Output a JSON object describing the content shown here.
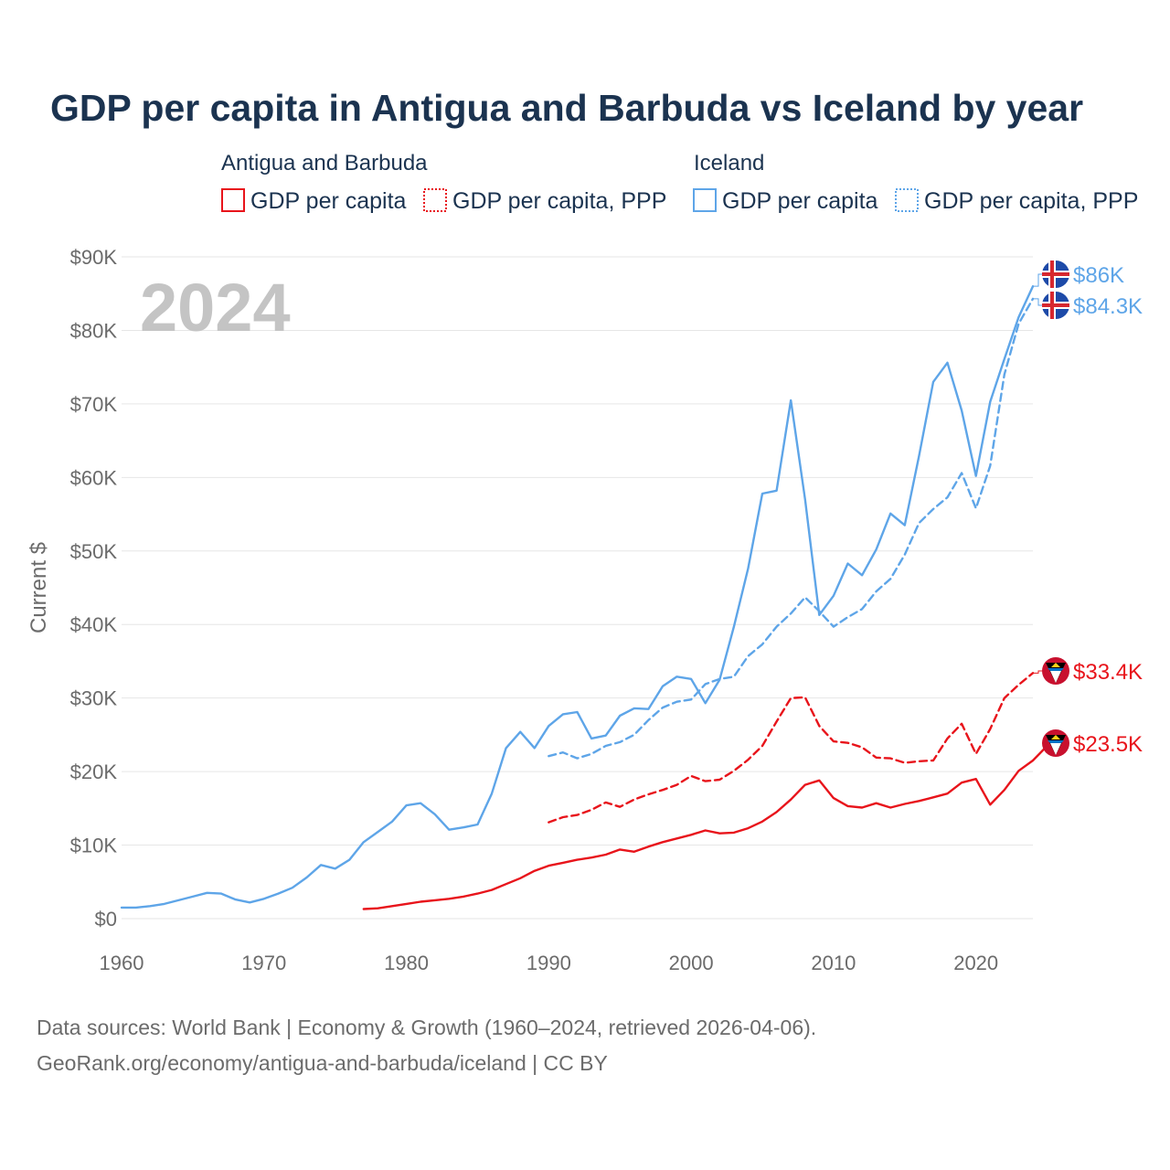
{
  "chart_data": {
    "type": "line",
    "title": "GDP per capita in Antigua and Barbuda vs Iceland by year",
    "ylabel": "Current $",
    "xlim": [
      1960,
      2024
    ],
    "ylim": [
      0,
      90000
    ],
    "x_ticks": [
      1960,
      1970,
      1980,
      1990,
      2000,
      2010,
      2020
    ],
    "x_tick_labels": [
      "1960",
      "1970",
      "1980",
      "1990",
      "2000",
      "2010",
      "2020"
    ],
    "y_ticks": [
      0,
      10000,
      20000,
      30000,
      40000,
      50000,
      60000,
      70000,
      80000,
      90000
    ],
    "y_tick_labels": [
      "$0",
      "$10K",
      "$20K",
      "$30K",
      "$40K",
      "$50K",
      "$60K",
      "$70K",
      "$80K",
      "$90K"
    ],
    "year_watermark": "2024",
    "legend": {
      "groups": [
        {
          "name": "Antigua and Barbuda",
          "items": [
            "GDP per capita",
            "GDP per capita, PPP"
          ]
        },
        {
          "name": "Iceland",
          "items": [
            "GDP per capita",
            "GDP per capita, PPP"
          ]
        }
      ]
    },
    "colors": {
      "antigua": "#e8141b",
      "iceland": "#5ea5e8"
    },
    "series": [
      {
        "name": "Iceland GDP per capita",
        "country": "Iceland",
        "style": "solid",
        "color": "#5ea5e8",
        "start_year": 1960,
        "end_label": "$86K",
        "values": [
          1500,
          1500,
          1700,
          2000,
          2500,
          3000,
          3500,
          3400,
          2600,
          2200,
          2700,
          3400,
          4200,
          5600,
          7300,
          6800,
          8000,
          10400,
          11800,
          13200,
          15400,
          15700,
          14200,
          12100,
          12400,
          12800,
          17000,
          23200,
          25400,
          23200,
          26200,
          27800,
          28100,
          24500,
          24900,
          27600,
          28600,
          28500,
          31600,
          32900,
          32600,
          29300,
          32500,
          39700,
          47600,
          57800,
          58200,
          70500,
          57000,
          41300,
          43900,
          48300,
          46700,
          50200,
          55100,
          53500,
          62900,
          73000,
          75600,
          69100,
          60200,
          70300,
          76100,
          81800,
          86000
        ]
      },
      {
        "name": "Iceland GDP per capita, PPP",
        "country": "Iceland",
        "style": "dashed",
        "color": "#5ea5e8",
        "start_year": 1990,
        "end_label": "$84.3K",
        "values": [
          22100,
          22600,
          21800,
          22400,
          23500,
          24000,
          25000,
          27000,
          28700,
          29500,
          29800,
          31900,
          32600,
          32900,
          35700,
          37300,
          39700,
          41500,
          43700,
          41800,
          39700,
          41000,
          42100,
          44500,
          46200,
          49500,
          53800,
          55700,
          57300,
          60600,
          55800,
          61600,
          74000,
          80900,
          84300
        ]
      },
      {
        "name": "Antigua and Barbuda GDP per capita, PPP",
        "country": "Antigua and Barbuda",
        "style": "dashed",
        "color": "#e8141b",
        "start_year": 1990,
        "end_label": "$33.4K",
        "values": [
          13100,
          13800,
          14100,
          14800,
          15800,
          15200,
          16200,
          16900,
          17500,
          18200,
          19400,
          18700,
          18900,
          20100,
          21600,
          23500,
          26800,
          30000,
          30100,
          26200,
          24100,
          23900,
          23300,
          21900,
          21800,
          21200,
          21400,
          21500,
          24500,
          26500,
          22400,
          25800,
          30000,
          31800,
          33400
        ]
      },
      {
        "name": "Antigua and Barbuda GDP per capita",
        "country": "Antigua and Barbuda",
        "style": "solid",
        "color": "#e8141b",
        "start_year": 1977,
        "end_label": "$23.5K",
        "values": [
          1300,
          1400,
          1700,
          2000,
          2300,
          2500,
          2700,
          3000,
          3400,
          3900,
          4700,
          5500,
          6500,
          7200,
          7600,
          8000,
          8300,
          8700,
          9400,
          9100,
          9800,
          10400,
          10900,
          11400,
          12000,
          11600,
          11700,
          12300,
          13200,
          14500,
          16200,
          18200,
          18800,
          16400,
          15300,
          15100,
          15700,
          15100,
          15600,
          16000,
          16500,
          17000,
          18500,
          19000,
          15500,
          17500,
          20100,
          21500,
          23500
        ]
      }
    ]
  },
  "footer": {
    "source_line1": "Data sources: World Bank | Economy & Growth (1960–2024, retrieved 2026-04-06).",
    "source_line2": "GeoRank.org/economy/antigua-and-barbuda/iceland | CC BY"
  }
}
